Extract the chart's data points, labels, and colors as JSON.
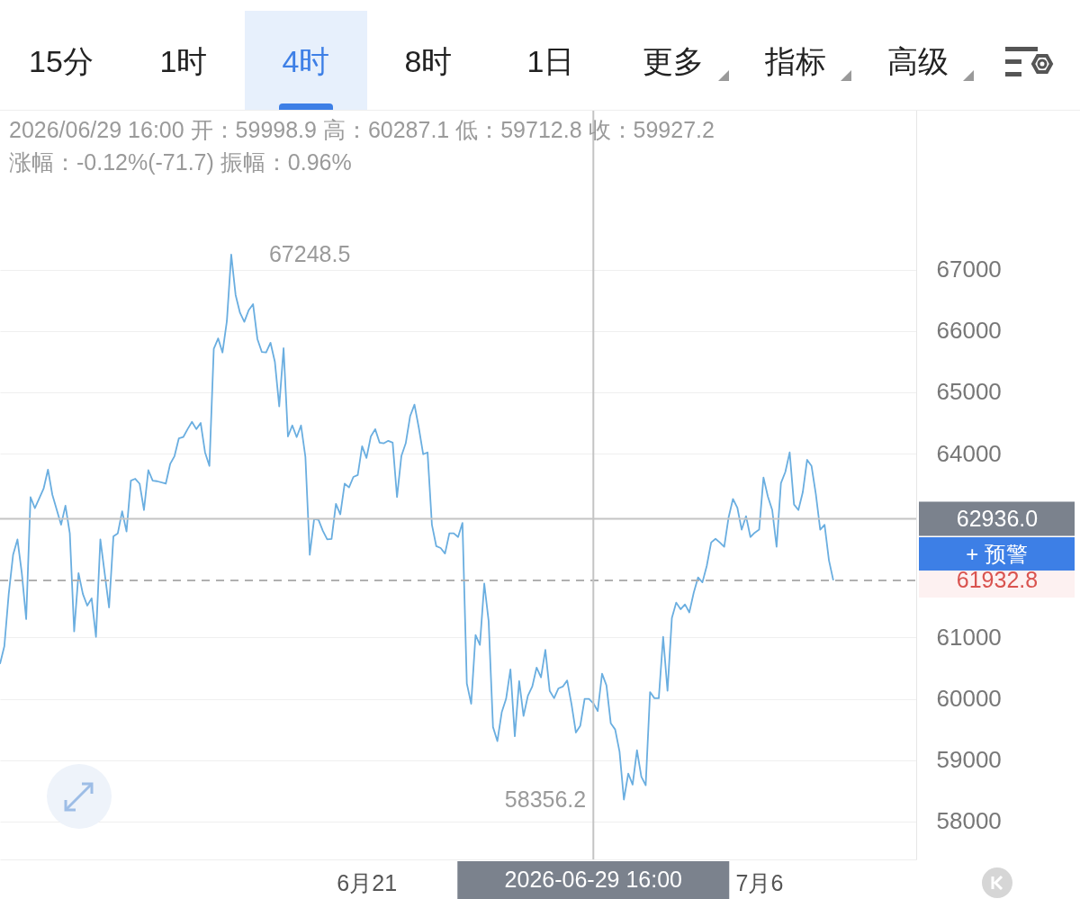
{
  "chart_data": {
    "type": "line",
    "annotations": [
      "15分",
      "1时",
      "4时",
      "8时",
      "1日",
      "更多",
      "指标",
      "高级",
      "2026/06/29 16:00 开：59998.9 高：60287.1 低：59712.8 收：59927.2",
      "涨幅：-0.12%(-71.7) 振幅：0.96%",
      "+ 预警",
      {
        "text": "67248.5",
        "x": "2026-06-15T20:00",
        "y": 67248.5
      },
      {
        "text": "58356.2",
        "x": "2026-06-30T20:00",
        "y": 58356.2
      }
    ],
    "x": [
      "2026-06-07T00:00",
      "2026-06-07T04:00",
      "2026-06-07T08:00",
      "2026-06-07T12:00",
      "2026-06-07T16:00",
      "2026-06-07T20:00",
      "2026-06-08T00:00",
      "2026-06-08T04:00",
      "2026-06-08T08:00",
      "2026-06-08T16:00",
      "2026-06-08T20:00",
      "2026-06-09T00:00",
      "2026-06-09T08:00",
      "2026-06-09T12:00",
      "2026-06-09T16:00",
      "2026-06-09T20:00",
      "2026-06-10T00:00",
      "2026-06-10T04:00",
      "2026-06-10T08:00",
      "2026-06-10T12:00",
      "2026-06-10T16:00",
      "2026-06-10T20:00",
      "2026-06-11T04:00",
      "2026-06-11T08:00",
      "2026-06-11T12:00",
      "2026-06-11T16:00",
      "2026-06-11T20:00",
      "2026-06-12T00:00",
      "2026-06-12T04:00",
      "2026-06-12T08:00",
      "2026-06-12T12:00",
      "2026-06-12T16:00",
      "2026-06-12T20:00",
      "2026-06-13T00:00",
      "2026-06-13T08:00",
      "2026-06-13T12:00",
      "2026-06-13T16:00",
      "2026-06-13T20:00",
      "2026-06-14T00:00",
      "2026-06-14T04:00",
      "2026-06-14T08:00",
      "2026-06-14T12:00",
      "2026-06-14T16:00",
      "2026-06-14T20:00",
      "2026-06-15T00:00",
      "2026-06-15T04:00",
      "2026-06-15T08:00",
      "2026-06-15T12:00",
      "2026-06-15T16:00",
      "2026-06-15T20:00",
      "2026-06-16T00:00",
      "2026-06-16T04:00",
      "2026-06-16T08:00",
      "2026-06-16T12:00",
      "2026-06-16T16:00",
      "2026-06-16T20:00",
      "2026-06-17T00:00",
      "2026-06-17T04:00",
      "2026-06-17T08:00",
      "2026-06-17T12:00",
      "2026-06-17T16:00",
      "2026-06-17T20:00",
      "2026-06-18T00:00",
      "2026-06-18T04:00",
      "2026-06-18T08:00",
      "2026-06-18T12:00",
      "2026-06-18T16:00",
      "2026-06-18T20:00",
      "2026-06-19T00:00",
      "2026-06-19T04:00",
      "2026-06-19T08:00",
      "2026-06-19T12:00",
      "2026-06-19T16:00",
      "2026-06-19T20:00",
      "2026-06-20T00:00",
      "2026-06-20T04:00",
      "2026-06-20T08:00",
      "2026-06-20T12:00",
      "2026-06-20T16:00",
      "2026-06-20T20:00",
      "2026-06-21T00:00",
      "2026-06-21T04:00",
      "2026-06-21T08:00",
      "2026-06-21T12:00",
      "2026-06-21T16:00",
      "2026-06-21T20:00",
      "2026-06-22T00:00",
      "2026-06-22T04:00",
      "2026-06-22T08:00",
      "2026-06-22T12:00",
      "2026-06-22T16:00",
      "2026-06-22T20:00",
      "2026-06-23T00:00",
      "2026-06-23T04:00",
      "2026-06-23T08:00",
      "2026-06-23T12:00",
      "2026-06-23T16:00",
      "2026-06-23T20:00",
      "2026-06-24T00:00",
      "2026-06-24T04:00",
      "2026-06-24T08:00",
      "2026-06-24T12:00",
      "2026-06-24T16:00",
      "2026-06-24T20:00",
      "2026-06-25T00:00",
      "2026-06-25T04:00",
      "2026-06-25T08:00",
      "2026-06-25T12:00",
      "2026-06-25T16:00",
      "2026-06-25T20:00",
      "2026-06-26T00:00",
      "2026-06-26T04:00",
      "2026-06-26T08:00",
      "2026-06-26T12:00",
      "2026-06-26T16:00",
      "2026-06-26T20:00",
      "2026-06-27T00:00",
      "2026-06-27T04:00",
      "2026-06-27T08:00",
      "2026-06-27T12:00",
      "2026-06-27T16:00",
      "2026-06-27T20:00",
      "2026-06-28T00:00",
      "2026-06-28T04:00",
      "2026-06-28T08:00",
      "2026-06-28T12:00",
      "2026-06-28T16:00",
      "2026-06-28T20:00",
      "2026-06-29T00:00",
      "2026-06-29T04:00",
      "2026-06-29T08:00",
      "2026-06-29T12:00",
      "2026-06-29T16:00",
      "2026-06-29T20:00",
      "2026-06-30T00:00",
      "2026-06-30T04:00",
      "2026-06-30T08:00",
      "2026-06-30T12:00",
      "2026-06-30T16:00",
      "2026-06-30T20:00",
      "2026-07-01T00:00",
      "2026-07-01T04:00",
      "2026-07-01T08:00",
      "2026-07-01T12:00",
      "2026-07-01T16:00",
      "2026-07-01T20:00",
      "2026-07-02T00:00",
      "2026-07-02T04:00",
      "2026-07-02T08:00",
      "2026-07-02T12:00",
      "2026-07-02T16:00",
      "2026-07-02T20:00",
      "2026-07-03T00:00",
      "2026-07-03T04:00",
      "2026-07-03T08:00",
      "2026-07-03T12:00",
      "2026-07-03T16:00",
      "2026-07-03T20:00",
      "2026-07-04T00:00",
      "2026-07-04T04:00",
      "2026-07-04T08:00",
      "2026-07-04T12:00",
      "2026-07-04T16:00",
      "2026-07-04T20:00",
      "2026-07-05T00:00",
      "2026-07-05T04:00",
      "2026-07-05T08:00",
      "2026-07-05T12:00",
      "2026-07-05T16:00",
      "2026-07-05T20:00",
      "2026-07-06T00:00",
      "2026-07-06T04:00",
      "2026-07-06T08:00",
      "2026-07-06T12:00",
      "2026-07-06T16:00",
      "2026-07-06T20:00",
      "2026-07-07T00:00",
      "2026-07-07T04:00",
      "2026-07-07T08:00",
      "2026-07-07T12:00",
      "2026-07-07T16:00",
      "2026-07-07T20:00",
      "2026-07-08T00:00",
      "2026-07-08T04:00",
      "2026-07-08T08:00",
      "2026-07-08T12:00",
      "2026-07-08T16:00",
      "2026-07-08T20:00"
    ],
    "series": [
      {
        "color": "#6aaee0",
        "values": [
          60570,
          60860,
          61710,
          62350,
          62600,
          62050,
          61300,
          63290,
          63110,
          63430,
          63740,
          63330,
          62840,
          63150,
          62700,
          61100,
          62050,
          61710,
          61520,
          61640,
          61010,
          62600,
          61490,
          62650,
          62700,
          63060,
          62730,
          63560,
          63590,
          63510,
          63080,
          63730,
          63560,
          63550,
          63510,
          63830,
          63960,
          64250,
          64270,
          64400,
          64520,
          64400,
          64500,
          64020,
          63800,
          65710,
          65880,
          65650,
          66160,
          67248.5,
          66590,
          66300,
          66150,
          66340,
          66440,
          65870,
          65660,
          65650,
          65810,
          65500,
          64770,
          65720,
          64280,
          64460,
          64270,
          64460,
          63950,
          62350,
          62930,
          62920,
          62740,
          62600,
          62610,
          63180,
          63010,
          63510,
          63450,
          63620,
          63650,
          64120,
          63930,
          64280,
          64400,
          64180,
          64170,
          64210,
          64180,
          63290,
          63960,
          64170,
          64610,
          64800,
          64420,
          63990,
          64020,
          62840,
          62490,
          62460,
          62370,
          62700,
          62700,
          62640,
          62870,
          60250,
          59920,
          61040,
          60880,
          61880,
          61270,
          59540,
          59310,
          59780,
          60000,
          60480,
          59390,
          60290,
          59720,
          60050,
          60200,
          60510,
          60350,
          60800,
          60130,
          60010,
          60170,
          60200,
          60300,
          59910,
          59450,
          59560,
          60000,
          60000,
          59927.2,
          59800,
          60410,
          60220,
          59600,
          59500,
          59140,
          58356.2,
          58780,
          58600,
          59160,
          58730,
          58590,
          60110,
          60010,
          60010,
          61010,
          60130,
          61320,
          61570,
          61460,
          61540,
          61410,
          61730,
          61980,
          61900,
          62170,
          62550,
          62610,
          62550,
          62480,
          62960,
          63260,
          63120,
          62760,
          62980,
          62640,
          62710,
          62760,
          63610,
          63300,
          63080,
          62480,
          63520,
          63700,
          64020,
          63170,
          63080,
          63370,
          63900,
          63800,
          63340,
          62760,
          62840,
          62260,
          61932.8
        ]
      }
    ],
    "xlim": [
      "2026-06-07T00:00",
      "2026-07-12T00:00"
    ],
    "xticks": [
      {
        "value": "2026-06-21T00:00",
        "label": "6月21"
      },
      {
        "value": "2026-07-06T00:00",
        "label": "7月6"
      }
    ],
    "ylim": [
      57380,
      69610
    ],
    "yticks": [
      58000,
      59000,
      60000,
      61000,
      64000,
      65000,
      66000,
      67000
    ],
    "grid": "y",
    "ref_lines": [
      {
        "axis": "y",
        "value": 62936.0,
        "label": "62936.0",
        "color": "#c4c4c4",
        "line_style": "solid"
      },
      {
        "axis": "y",
        "value": 61932.8,
        "label": "61932.8",
        "color": "#b0b0b0",
        "line_style": "dashed"
      },
      {
        "axis": "x",
        "value": "2026-06-29T16:00",
        "label": "2026-06-29 16:00",
        "color": "#c4c4c4",
        "line_style": "solid"
      }
    ]
  }
}
